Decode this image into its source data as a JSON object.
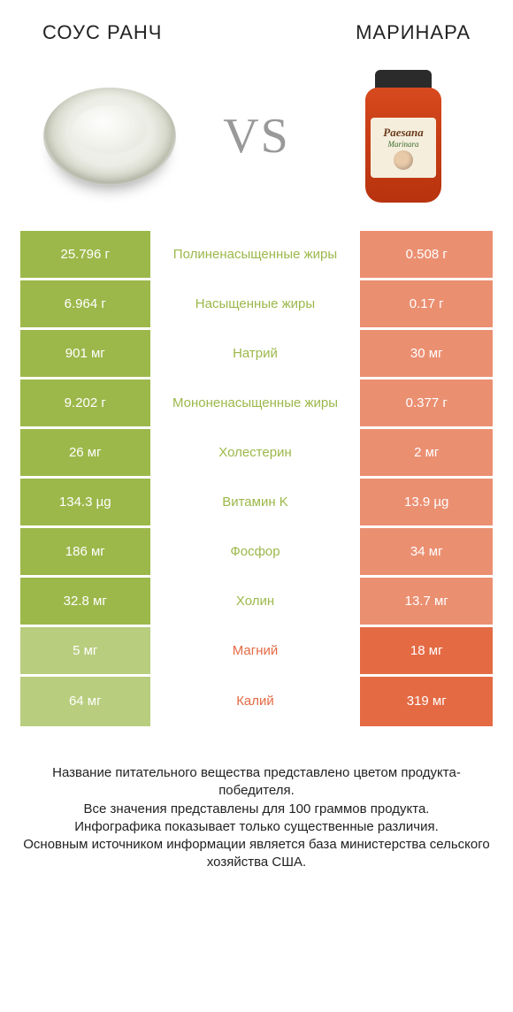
{
  "colors": {
    "left": "#9cb84a",
    "right": "#e46a44",
    "left_light": "#b8cd7e",
    "right_light": "#eb8f71",
    "white": "#ffffff",
    "text_dark": "#222222"
  },
  "header": {
    "left_title": "СОУС РАНЧ",
    "right_title": "МАРИНАРА",
    "vs": "VS"
  },
  "jar": {
    "brand": "Paesana",
    "sub": "Marinara"
  },
  "rows": [
    {
      "left": "25.796 г",
      "mid": "Полиненасыщенные жиры",
      "right": "0.508 г",
      "winner": "left"
    },
    {
      "left": "6.964 г",
      "mid": "Насыщенные жиры",
      "right": "0.17 г",
      "winner": "left"
    },
    {
      "left": "901 мг",
      "mid": "Натрий",
      "right": "30 мг",
      "winner": "left"
    },
    {
      "left": "9.202 г",
      "mid": "Мононенасыщенные жиры",
      "right": "0.377 г",
      "winner": "left"
    },
    {
      "left": "26 мг",
      "mid": "Холестерин",
      "right": "2 мг",
      "winner": "left"
    },
    {
      "left": "134.3 µg",
      "mid": "Витамин K",
      "right": "13.9 µg",
      "winner": "left"
    },
    {
      "left": "186 мг",
      "mid": "Фосфор",
      "right": "34 мг",
      "winner": "left"
    },
    {
      "left": "32.8 мг",
      "mid": "Холин",
      "right": "13.7 мг",
      "winner": "left"
    },
    {
      "left": "5 мг",
      "mid": "Магний",
      "right": "18 мг",
      "winner": "right"
    },
    {
      "left": "64 мг",
      "mid": "Калий",
      "right": "319 мг",
      "winner": "right"
    }
  ],
  "footer": {
    "line1": "Название питательного вещества представлено цветом продукта-победителя.",
    "line2": "Все значения представлены для 100 граммов продукта.",
    "line3": "Инфографика показывает только существенные различия.",
    "line4": "Основным источником информации является база министерства сельского хозяйства США."
  }
}
